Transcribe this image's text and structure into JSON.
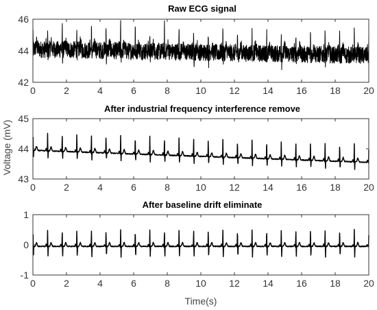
{
  "chart_data": [
    {
      "type": "line",
      "title": "Raw ECG signal",
      "xlim": [
        0,
        20
      ],
      "ylim": [
        42,
        46
      ],
      "x_ticks": [
        "0",
        "2",
        "4",
        "6",
        "8",
        "10",
        "12",
        "14",
        "16",
        "18",
        "20"
      ],
      "y_ticks": [
        "46",
        "44",
        "42"
      ],
      "signal": {
        "baseline_start": 44.1,
        "baseline_end": 43.7,
        "r_peak_height": 1.5,
        "noise_amplitude": 0.55,
        "beats_per_second": 1.15
      }
    },
    {
      "type": "line",
      "title": "After industrial frequency interference remove",
      "xlim": [
        0,
        20
      ],
      "ylim": [
        43,
        45
      ],
      "x_ticks": [
        "0",
        "2",
        "4",
        "6",
        "8",
        "10",
        "12",
        "14",
        "16",
        "18",
        "20"
      ],
      "y_ticks": [
        "45",
        "44",
        "43"
      ],
      "signal": {
        "baseline_start": 43.95,
        "baseline_end": 43.55,
        "r_peak_height": 0.6,
        "s_dip": -0.25,
        "beats_per_second": 1.15
      }
    },
    {
      "type": "line",
      "title": "After baseline drift eliminate",
      "xlim": [
        0,
        20
      ],
      "ylim": [
        -1,
        1
      ],
      "x_ticks": [
        "0",
        "2",
        "4",
        "6",
        "8",
        "10",
        "12",
        "14",
        "16",
        "18",
        "20"
      ],
      "y_ticks": [
        "1",
        "0",
        "-1"
      ],
      "signal": {
        "baseline_start": -0.05,
        "baseline_end": -0.05,
        "r_peak_height": 0.55,
        "s_dip": -0.35,
        "beats_per_second": 1.15
      }
    }
  ],
  "labels": {
    "ylabel": "Voltage (mV)",
    "xlabel": "Time(s)"
  }
}
